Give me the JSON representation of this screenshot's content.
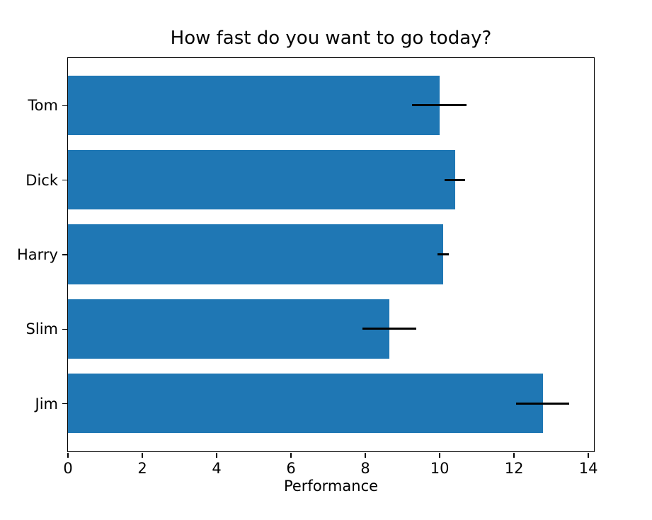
{
  "chart_data": {
    "type": "bar",
    "orientation": "horizontal",
    "title": "How fast do you want to go today?",
    "xlabel": "Performance",
    "ylabel": "",
    "categories": [
      "Tom",
      "Dick",
      "Harry",
      "Slim",
      "Jim"
    ],
    "values": [
      10.0,
      10.42,
      10.1,
      8.66,
      12.78
    ],
    "errors": [
      0.73,
      0.27,
      0.15,
      0.72,
      0.72
    ],
    "xticks": [
      0,
      2,
      4,
      6,
      8,
      10,
      12,
      14
    ],
    "xlim": [
      0,
      14.15
    ],
    "bar_color": "#1f77b4",
    "error_color": "#000000",
    "background_color": "#ffffff",
    "grid": false,
    "legend_visible": false,
    "category_order_note": "labels read top-to-bottom (inverted y axis)"
  }
}
